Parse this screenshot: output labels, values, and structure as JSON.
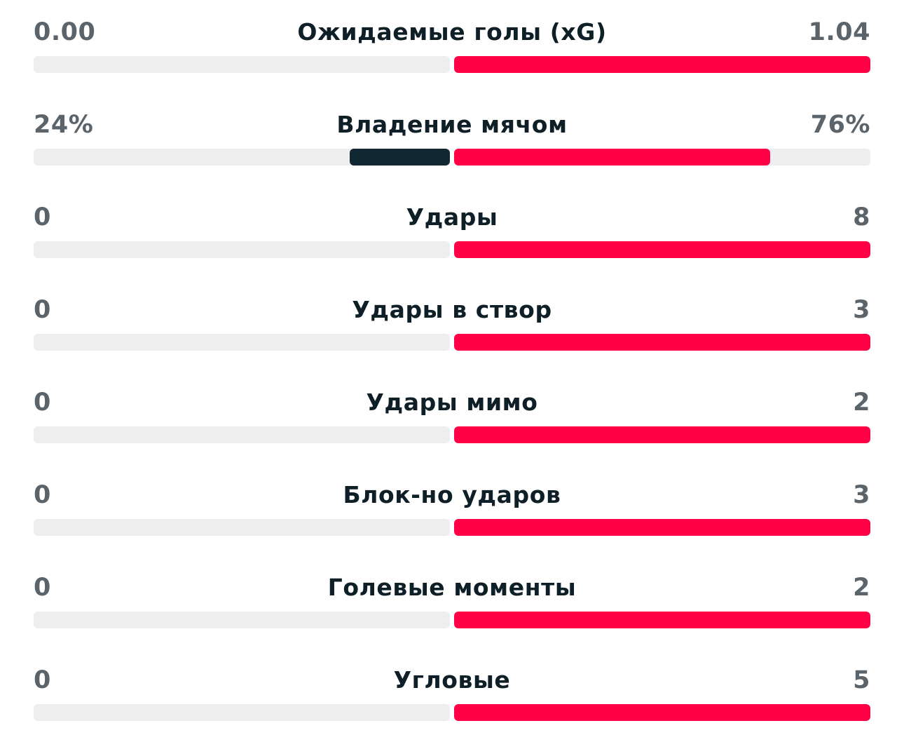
{
  "colors": {
    "home_bar": "#112833",
    "away_bar": "#ff0046",
    "track": "#eeeeee"
  },
  "stats": [
    {
      "label": "Ожидаемые голы (xG)",
      "home": "0.00",
      "away": "1.04",
      "home_share": 0.0,
      "away_share": 1.0
    },
    {
      "label": "Владение мячом",
      "home": "24%",
      "away": "76%",
      "home_share": 0.24,
      "away_share": 0.76
    },
    {
      "label": "Удары",
      "home": "0",
      "away": "8",
      "home_share": 0.0,
      "away_share": 1.0
    },
    {
      "label": "Удары в створ",
      "home": "0",
      "away": "3",
      "home_share": 0.0,
      "away_share": 1.0
    },
    {
      "label": "Удары мимо",
      "home": "0",
      "away": "2",
      "home_share": 0.0,
      "away_share": 1.0
    },
    {
      "label": "Блок-но ударов",
      "home": "0",
      "away": "3",
      "home_share": 0.0,
      "away_share": 1.0
    },
    {
      "label": "Голевые моменты",
      "home": "0",
      "away": "2",
      "home_share": 0.0,
      "away_share": 1.0
    },
    {
      "label": "Угловые",
      "home": "0",
      "away": "5",
      "home_share": 0.0,
      "away_share": 1.0
    }
  ]
}
